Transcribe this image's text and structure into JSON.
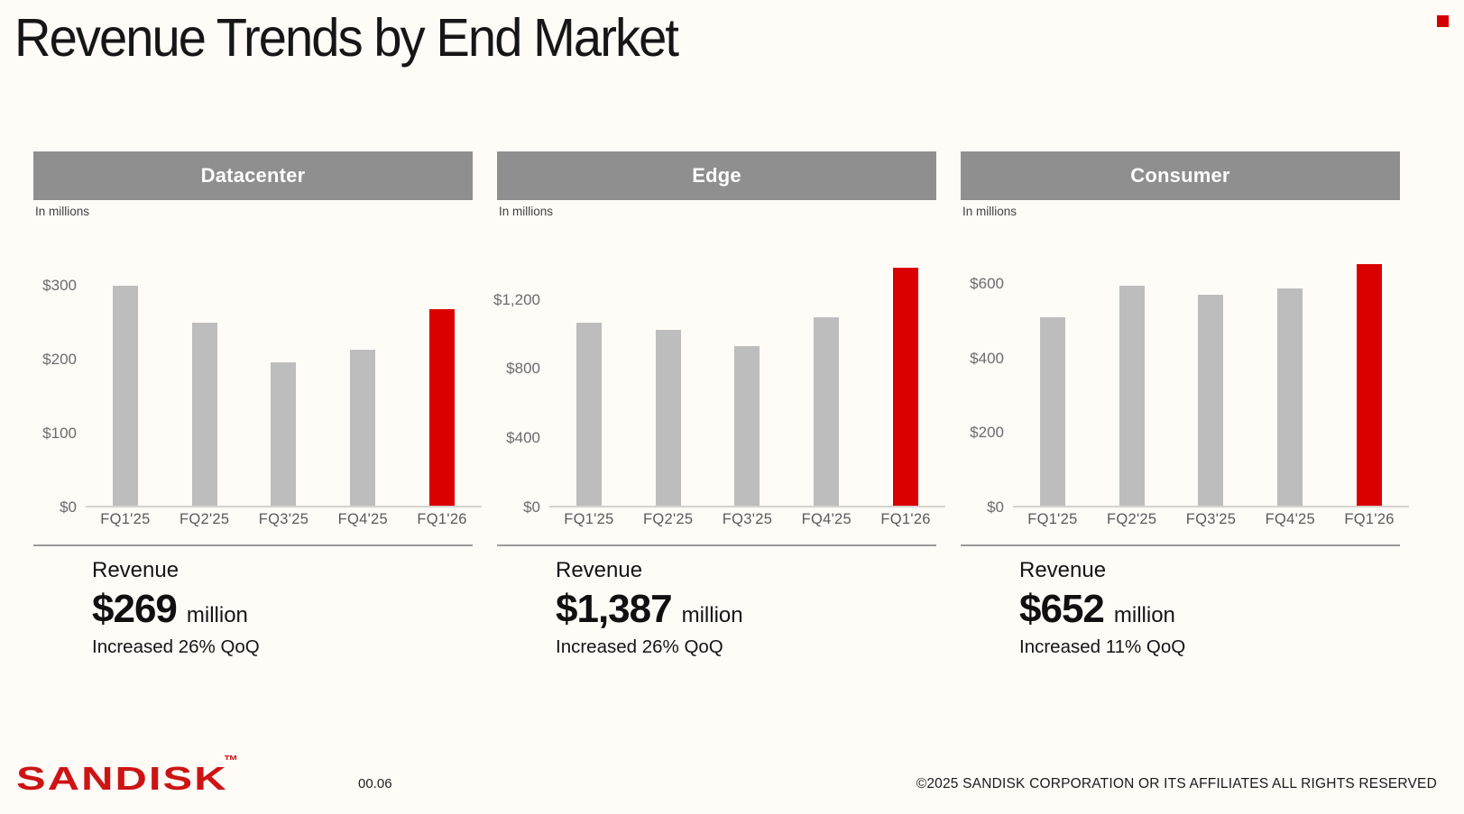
{
  "page": {
    "title": "Revenue Trends by End Market"
  },
  "colors": {
    "background": "#FFFBF7",
    "header_gray": "#8F8F8F",
    "bar_gray": "#BDBDBD",
    "bar_red": "#DB0000",
    "accent_red": "#D40000",
    "logo_red": "#CC1414"
  },
  "panels": [
    {
      "header": "Datacenter",
      "units_note": "In millions",
      "summary": {
        "label": "Revenue",
        "amount": "$269",
        "unit": "million",
        "change": "Increased 26% QoQ"
      }
    },
    {
      "header": "Edge",
      "units_note": "In millions",
      "summary": {
        "label": "Revenue",
        "amount": "$1,387",
        "unit": "million",
        "change": "Increased 26% QoQ"
      }
    },
    {
      "header": "Consumer",
      "units_note": "In millions",
      "summary": {
        "label": "Revenue",
        "amount": "$652",
        "unit": "million",
        "change": "Increased 11% QoQ"
      }
    }
  ],
  "chart_data": [
    {
      "type": "bar",
      "title": "Datacenter",
      "ylabel": "Revenue ($ millions)",
      "xlabel": "",
      "categories": [
        "FQ1'25",
        "FQ2'25",
        "FQ3'25",
        "FQ4'25",
        "FQ1'26"
      ],
      "values": [
        300,
        250,
        197,
        213,
        269
      ],
      "highlight_index": 4,
      "yticks": [
        {
          "label": "$0",
          "value": 0
        },
        {
          "label": "$100",
          "value": 100
        },
        {
          "label": "$200",
          "value": 200
        },
        {
          "label": "$300",
          "value": 300
        }
      ],
      "ylim": [
        0,
        382
      ],
      "grid": false,
      "legend": false
    },
    {
      "type": "bar",
      "title": "Edge",
      "ylabel": "Revenue ($ millions)",
      "xlabel": "",
      "categories": [
        "FQ1'25",
        "FQ2'25",
        "FQ3'25",
        "FQ4'25",
        "FQ1'26"
      ],
      "values": [
        1065,
        1025,
        930,
        1101,
        1387
      ],
      "highlight_index": 4,
      "yticks": [
        {
          "label": "$0",
          "value": 0
        },
        {
          "label": "$400",
          "value": 400
        },
        {
          "label": "$800",
          "value": 800
        },
        {
          "label": "$1,200",
          "value": 1200
        }
      ],
      "ylim": [
        0,
        1630
      ],
      "grid": false,
      "legend": false
    },
    {
      "type": "bar",
      "title": "Consumer",
      "ylabel": "Revenue ($ millions)",
      "xlabel": "",
      "categories": [
        "FQ1'25",
        "FQ2'25",
        "FQ3'25",
        "FQ4'25",
        "FQ1'26"
      ],
      "values": [
        510,
        595,
        570,
        587,
        652
      ],
      "highlight_index": 4,
      "yticks": [
        {
          "label": "$0",
          "value": 0
        },
        {
          "label": "$200",
          "value": 200
        },
        {
          "label": "$400",
          "value": 400
        },
        {
          "label": "$600",
          "value": 600
        }
      ],
      "ylim": [
        0,
        757
      ],
      "grid": false,
      "legend": false
    }
  ],
  "footer": {
    "brand": "SANDISK",
    "brand_tm": "TM",
    "page_number": "00.06",
    "copyright": "©2025 SANDISK CORPORATION OR ITS AFFILIATES ALL RIGHTS RESERVED"
  }
}
